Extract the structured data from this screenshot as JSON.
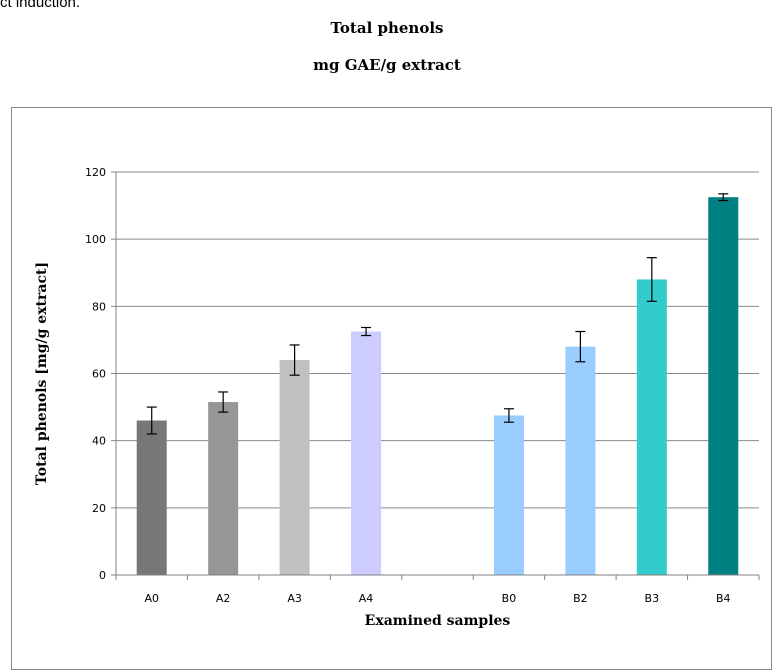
{
  "page": {
    "top_fragment": "ct induction.",
    "title_line_1": "Total phenols",
    "title_line_2": "mg GAE/g extract"
  },
  "chart_data": {
    "type": "bar",
    "title": "",
    "categories": [
      "A0",
      "A2",
      "A3",
      "A4",
      "",
      "B0",
      "B2",
      "B3",
      "B4"
    ],
    "values": [
      46,
      51.5,
      64,
      72.5,
      null,
      47.5,
      68,
      88,
      112.5
    ],
    "error": [
      4,
      3,
      4.5,
      1.2,
      null,
      2,
      4.5,
      6.5,
      1
    ],
    "colors": [
      "#777777",
      "#969696",
      "#c0c0c0",
      "#ccccff",
      null,
      "#99ccff",
      "#99ccff",
      "#33cccc",
      "#008080"
    ],
    "xlabel": "Examined samples",
    "ylabel": "Total phenols  [mg/g extract]",
    "ylim": [
      0,
      120
    ],
    "yticks": [
      0,
      20,
      40,
      60,
      80,
      100,
      120
    ],
    "grid": true,
    "legend": false
  }
}
